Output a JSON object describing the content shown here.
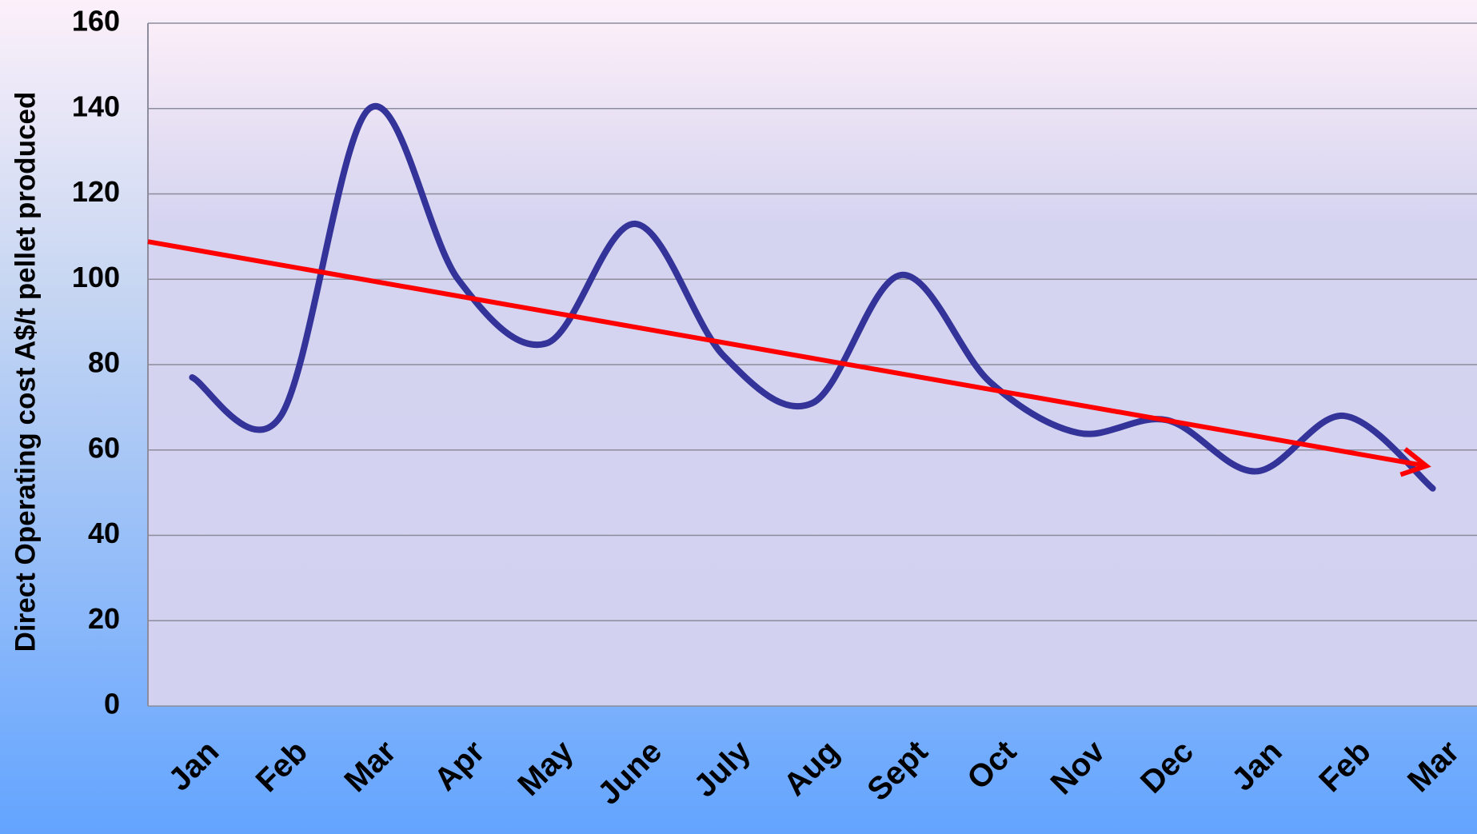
{
  "chart_data": {
    "type": "line",
    "y_label": "Direct Operating cost A$/t pellet produced",
    "categories": [
      "Jan",
      "Feb",
      "Mar",
      "Apr",
      "May",
      "June",
      "July",
      "Aug",
      "Sept",
      "Oct",
      "Nov",
      "Dec",
      "Jan",
      "Feb",
      "Mar"
    ],
    "series": [
      {
        "color": "#333399",
        "values": [
          77,
          68,
          140,
          100,
          85,
          113,
          82,
          71,
          101,
          76,
          64,
          67,
          55,
          68,
          51
        ]
      }
    ],
    "trend_line": {
      "color": "#ff0000",
      "values": [
        107,
        56
      ]
    },
    "ylim": [
      0,
      160
    ],
    "yticks": [
      0,
      20,
      40,
      60,
      80,
      100,
      120,
      140,
      160
    ],
    "grid": true
  }
}
